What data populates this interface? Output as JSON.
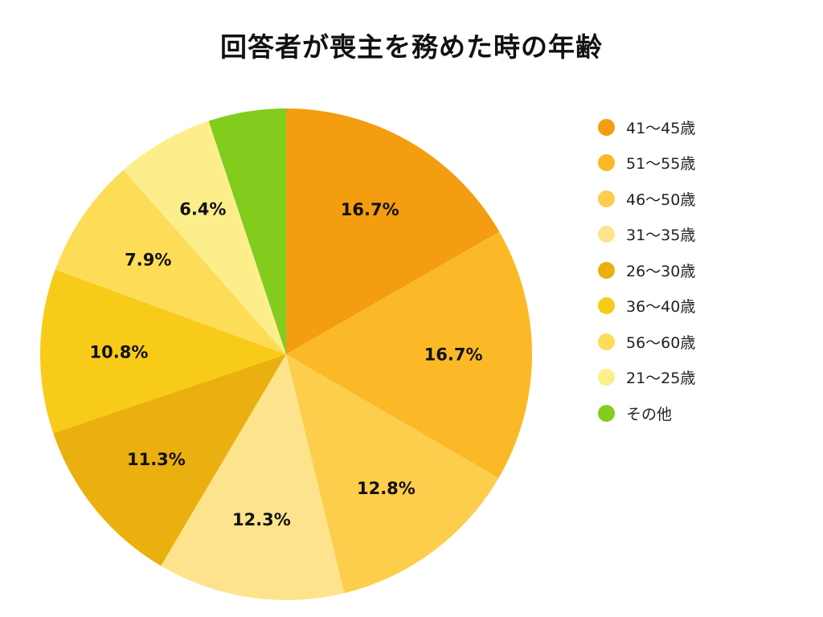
{
  "title": "回答者が喪主を務めた時の年齢",
  "chart_data": {
    "type": "pie",
    "title": "回答者が喪主を務めた時の年齢",
    "start_angle": "12 o'clock, clockwise",
    "slices": [
      {
        "label": "41〜45歳",
        "value": 16.7,
        "display": "16.7%",
        "color": "#F49D10"
      },
      {
        "label": "51〜55歳",
        "value": 16.7,
        "display": "16.7%",
        "color": "#FBB927"
      },
      {
        "label": "46〜50歳",
        "value": 12.8,
        "display": "12.8%",
        "color": "#FDCD4C"
      },
      {
        "label": "31〜35歳",
        "value": 12.3,
        "display": "12.3%",
        "color": "#FDE48C"
      },
      {
        "label": "26〜30歳",
        "value": 11.3,
        "display": "11.3%",
        "color": "#EAB010"
      },
      {
        "label": "36〜40歳",
        "value": 10.8,
        "display": "10.8%",
        "color": "#F8CB18"
      },
      {
        "label": "56〜60歳",
        "value": 7.9,
        "display": "7.9%",
        "color": "#FDDD58"
      },
      {
        "label": "21〜25歳",
        "value": 6.4,
        "display": "6.4%",
        "color": "#FDEE8C"
      },
      {
        "label": "その他",
        "value": 5.1,
        "display": "",
        "color": "#82CC1E"
      }
    ],
    "legend_position": "right",
    "legend_order": [
      "41〜45歳",
      "51〜55歳",
      "46〜50歳",
      "31〜35歳",
      "26〜30歳",
      "36〜40歳",
      "56〜60歳",
      "21〜25歳",
      "その他"
    ]
  }
}
